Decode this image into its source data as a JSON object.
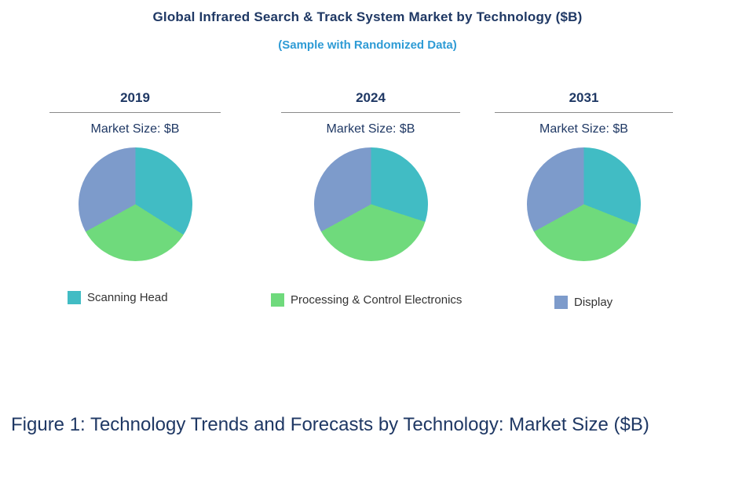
{
  "header": {
    "title": "Global Infrared Search & Track System Market by Technology ($B)",
    "subtitle": "(Sample with Randomized Data)"
  },
  "chart_data": {
    "type": "pie",
    "title": "Global Infrared Search & Track System Market by Technology ($B)",
    "subtitle": "(Sample with Randomized Data)",
    "categories": [
      "Scanning Head",
      "Processing & Control Electronics",
      "Display"
    ],
    "colors": [
      "#41BCC4",
      "#6FDA7C",
      "#7D9BCB"
    ],
    "legend_position": "bottom",
    "charts": [
      {
        "year": "2019",
        "label": "Market Size: $B",
        "values": [
          34,
          33,
          33
        ]
      },
      {
        "year": "2024",
        "label": "Market Size: $B",
        "values": [
          30,
          37,
          33
        ]
      },
      {
        "year": "2031",
        "label": "Market Size: $B",
        "values": [
          31,
          36,
          33
        ]
      }
    ],
    "caption": "Figure 1: Technology Trends and Forecasts by Technology: Market Size ($B)"
  },
  "legend": {
    "items": [
      {
        "label": "Scanning Head"
      },
      {
        "label": "Processing & Control Electronics"
      },
      {
        "label": "Display"
      }
    ]
  },
  "caption": "Figure 1: Technology Trends and Forecasts by Technology: Market Size ($B)"
}
